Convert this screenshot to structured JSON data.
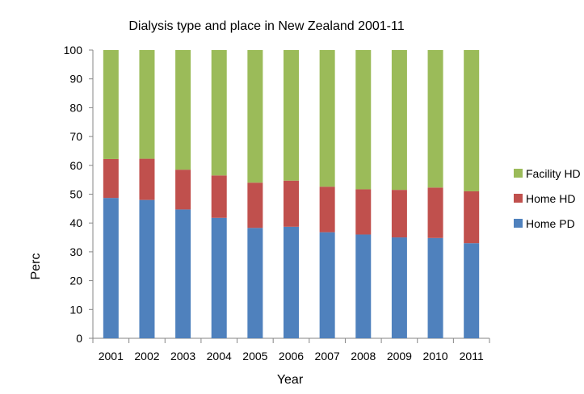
{
  "chart_data": {
    "type": "bar",
    "stacked": true,
    "title": "Dialysis type and place in New Zealand 2001-11",
    "xlabel": "Year",
    "ylabel": "Perc",
    "ylim": [
      0,
      100
    ],
    "yticks": [
      0,
      10,
      20,
      30,
      40,
      50,
      60,
      70,
      80,
      90,
      100
    ],
    "grid": false,
    "legend_position": "right",
    "categories": [
      "2001",
      "2002",
      "2003",
      "2004",
      "2005",
      "2006",
      "2007",
      "2008",
      "2009",
      "2010",
      "2011"
    ],
    "series": [
      {
        "name": "Home PD",
        "color": "#4f81bd",
        "values": [
          48.7,
          48.0,
          44.7,
          41.8,
          38.3,
          38.7,
          36.8,
          36.0,
          35.0,
          34.8,
          33.0
        ]
      },
      {
        "name": "Home HD",
        "color": "#c0504d",
        "values": [
          13.5,
          14.3,
          13.8,
          14.7,
          15.7,
          16.0,
          15.8,
          15.7,
          16.5,
          17.5,
          18.0
        ]
      },
      {
        "name": "Facility HD",
        "color": "#9bbb59",
        "values": [
          37.8,
          37.7,
          41.5,
          43.5,
          46.0,
          45.3,
          47.4,
          48.3,
          48.5,
          47.7,
          49.0
        ]
      }
    ]
  }
}
